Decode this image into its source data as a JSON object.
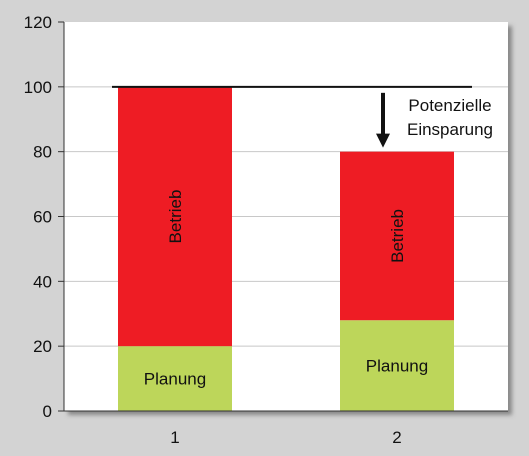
{
  "chart_data": {
    "type": "bar",
    "stacked": true,
    "categories": [
      "1",
      "2"
    ],
    "series": [
      {
        "values": [
          20,
          28
        ],
        "color": "#bdd65a",
        "segment_label": "Planung"
      },
      {
        "values": [
          80,
          52
        ],
        "color": "#ee1c24",
        "segment_label": "Betrieb"
      }
    ],
    "ylim": [
      0,
      120
    ],
    "yticks": [
      "0",
      "20",
      "40",
      "60",
      "80",
      "100",
      "120"
    ],
    "reference_line": {
      "y": 100
    },
    "annotation": {
      "lines": [
        "Potenzielle",
        "Einsparung"
      ],
      "arrow": "down"
    },
    "grid": true,
    "background_color": "#d3d3d3",
    "plot_background_color": "#ffffff"
  }
}
